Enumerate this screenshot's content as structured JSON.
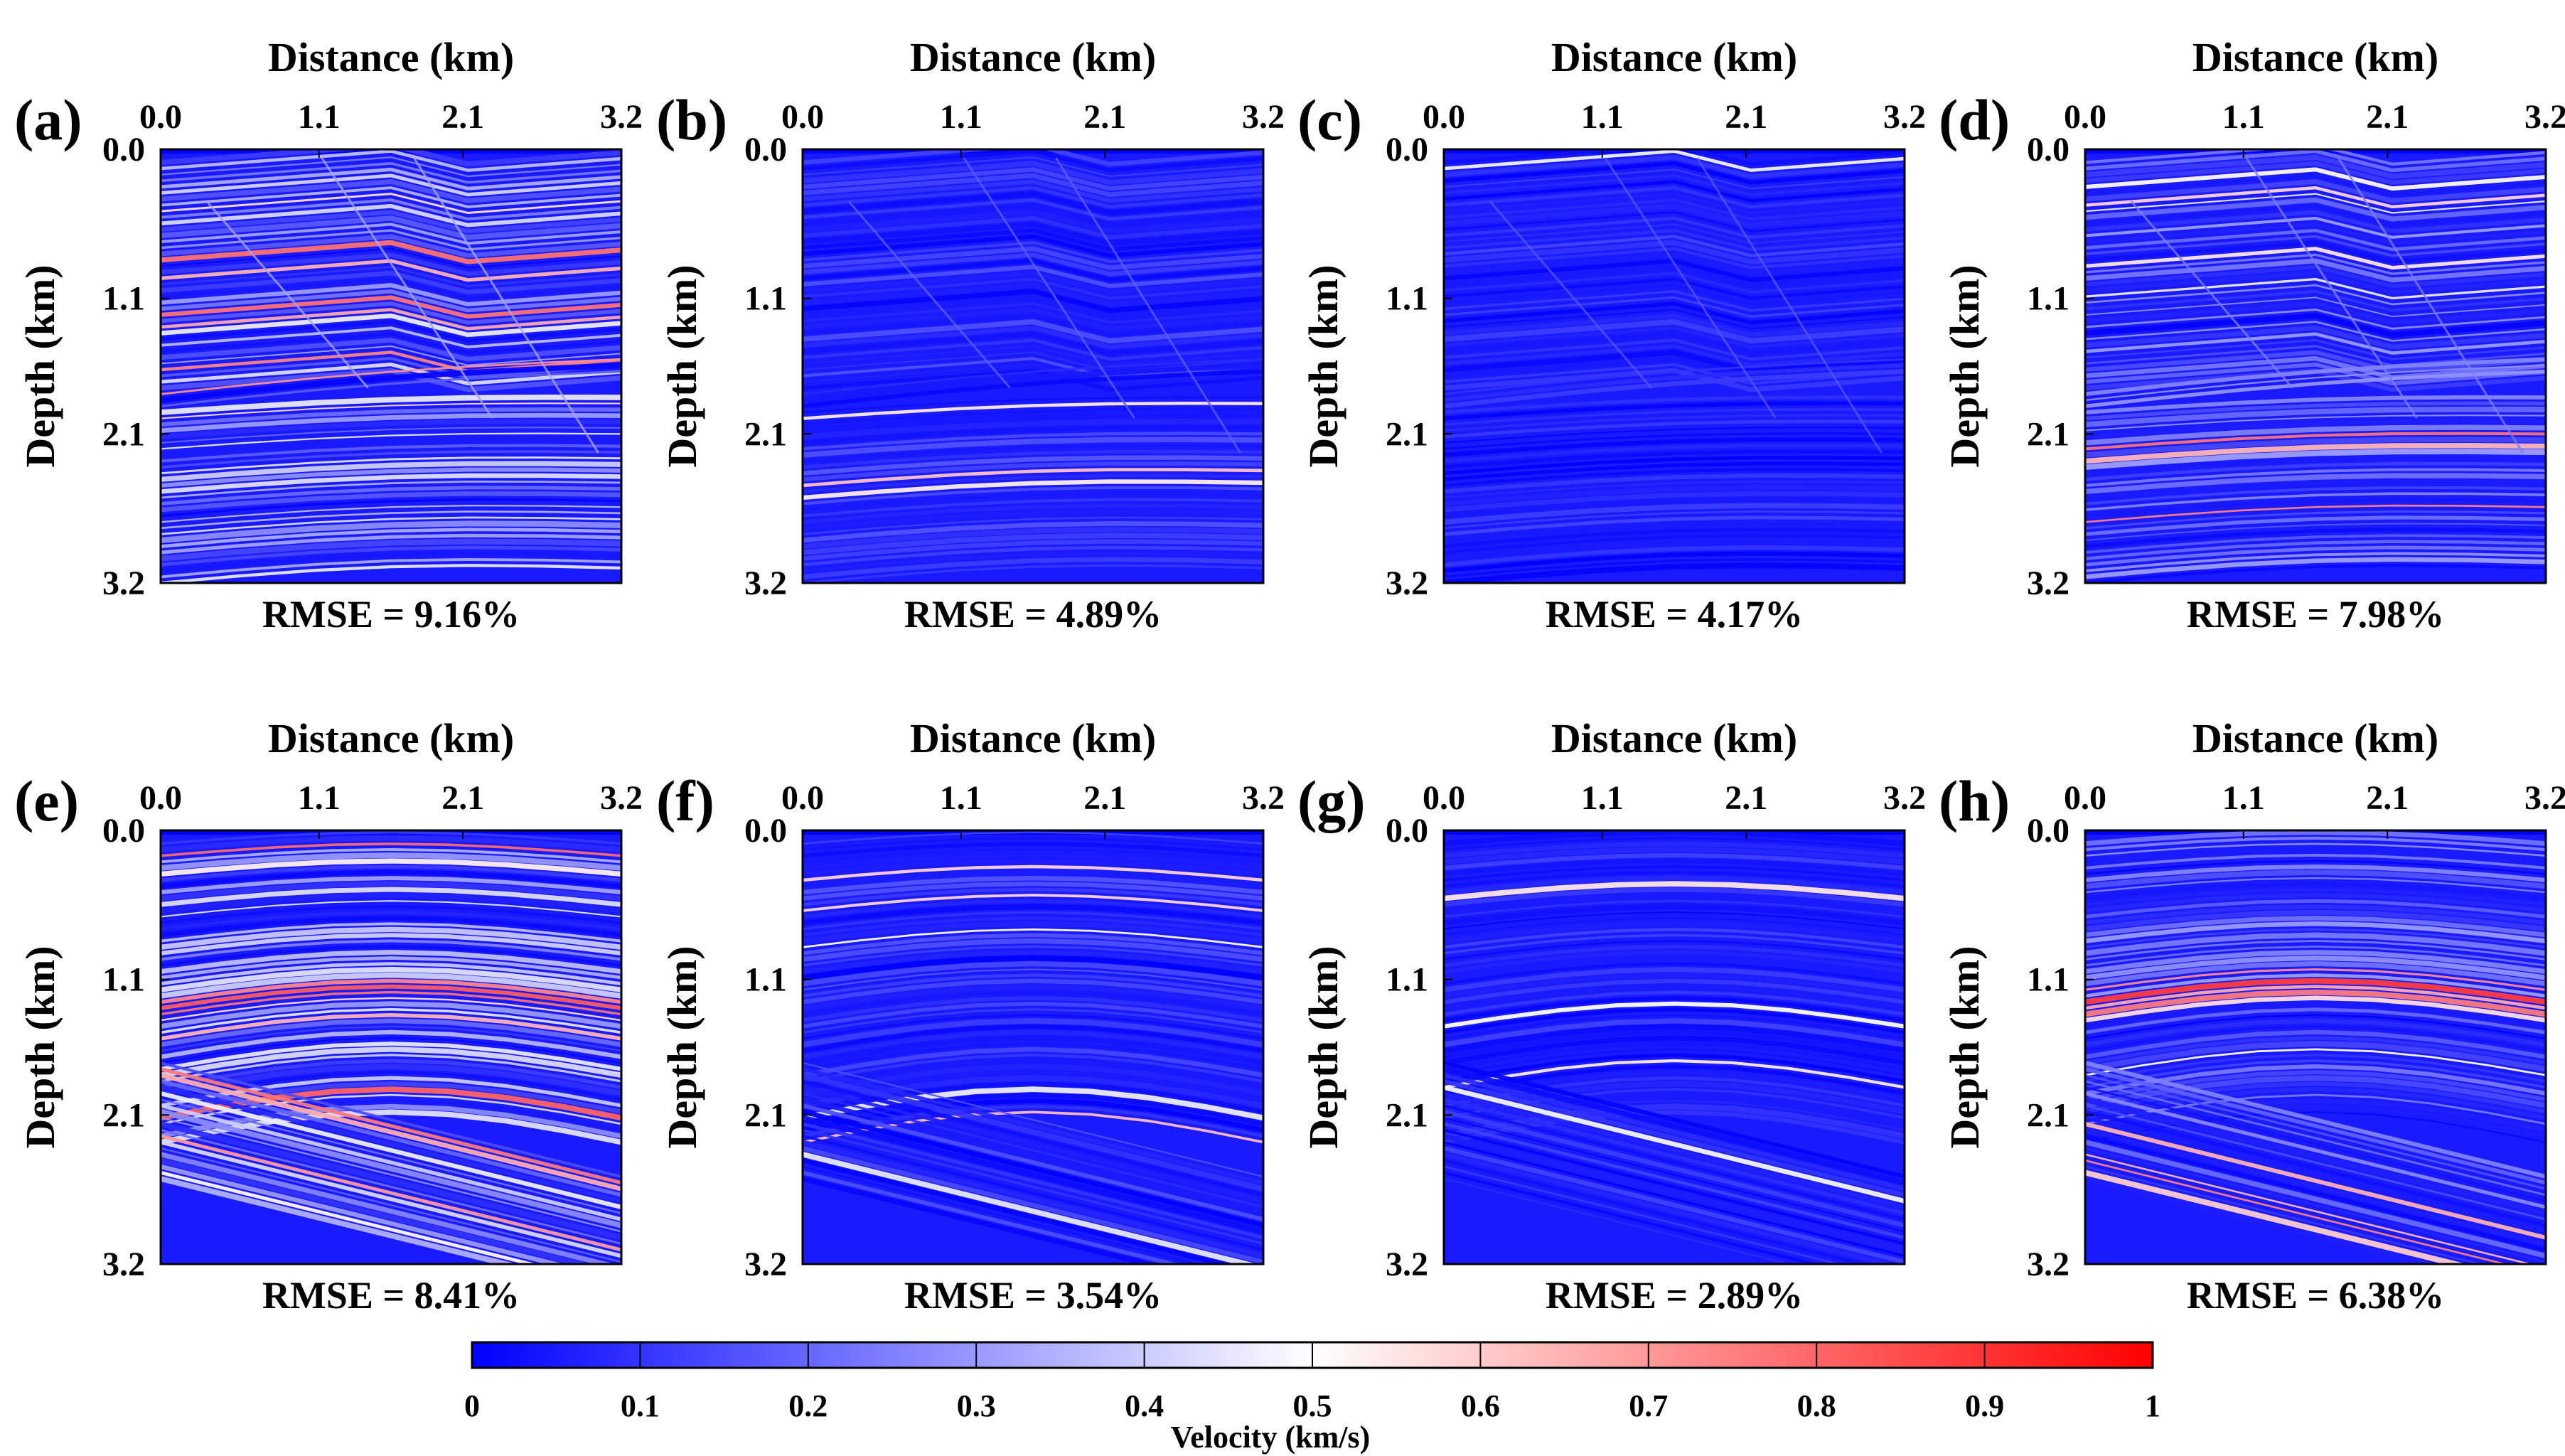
{
  "figure": {
    "xlabel": "Distance (km)",
    "ylabel": "Depth (km)",
    "x_ticks": [
      "0.0",
      "1.1",
      "2.1",
      "3.2"
    ],
    "y_ticks": [
      "0.0",
      "1.1",
      "2.1",
      "3.2"
    ],
    "rmse_prefix": "RMSE = "
  },
  "chart_data": [
    {
      "type": "heatmap",
      "panel": "(a)",
      "rmse": "9.16%",
      "xlabel": "Distance (km)",
      "ylabel": "Depth (km)",
      "xlim": [
        0.0,
        3.2
      ],
      "ylim": [
        0.0,
        3.2
      ],
      "model": "faulted",
      "noise": "high"
    },
    {
      "type": "heatmap",
      "panel": "(b)",
      "rmse": "4.89%",
      "xlabel": "Distance (km)",
      "ylabel": "Depth (km)",
      "xlim": [
        0.0,
        3.2
      ],
      "ylim": [
        0.0,
        3.2
      ],
      "model": "faulted",
      "noise": "low"
    },
    {
      "type": "heatmap",
      "panel": "(c)",
      "rmse": "4.17%",
      "xlabel": "Distance (km)",
      "ylabel": "Depth (km)",
      "xlim": [
        0.0,
        3.2
      ],
      "ylim": [
        0.0,
        3.2
      ],
      "model": "faulted",
      "noise": "lowest"
    },
    {
      "type": "heatmap",
      "panel": "(d)",
      "rmse": "7.98%",
      "xlabel": "Distance (km)",
      "ylabel": "Depth (km)",
      "xlim": [
        0.0,
        3.2
      ],
      "ylim": [
        0.0,
        3.2
      ],
      "model": "faulted",
      "noise": "medium"
    },
    {
      "type": "heatmap",
      "panel": "(e)",
      "rmse": "8.41%",
      "xlabel": "Distance (km)",
      "ylabel": "Depth (km)",
      "xlim": [
        0.0,
        3.2
      ],
      "ylim": [
        0.0,
        3.2
      ],
      "model": "layered",
      "noise": "high"
    },
    {
      "type": "heatmap",
      "panel": "(f)",
      "rmse": "3.54%",
      "xlabel": "Distance (km)",
      "ylabel": "Depth (km)",
      "xlim": [
        0.0,
        3.2
      ],
      "ylim": [
        0.0,
        3.2
      ],
      "model": "layered",
      "noise": "low"
    },
    {
      "type": "heatmap",
      "panel": "(g)",
      "rmse": "2.89%",
      "xlabel": "Distance (km)",
      "ylabel": "Depth (km)",
      "xlim": [
        0.0,
        3.2
      ],
      "ylim": [
        0.0,
        3.2
      ],
      "model": "layered",
      "noise": "lowest"
    },
    {
      "type": "heatmap",
      "panel": "(h)",
      "rmse": "6.38%",
      "xlabel": "Distance (km)",
      "ylabel": "Depth (km)",
      "xlim": [
        0.0,
        3.2
      ],
      "ylim": [
        0.0,
        3.2
      ],
      "model": "layered",
      "noise": "medium"
    }
  ],
  "colorbar": {
    "label": "Velocity (km/s)",
    "min": 0,
    "max": 1,
    "ticks": [
      "0",
      "0.1",
      "0.2",
      "0.3",
      "0.4",
      "0.5",
      "0.6",
      "0.7",
      "0.8",
      "0.9",
      "1"
    ],
    "colors": [
      "#0000ff",
      "#ffffff",
      "#ff0000"
    ]
  }
}
